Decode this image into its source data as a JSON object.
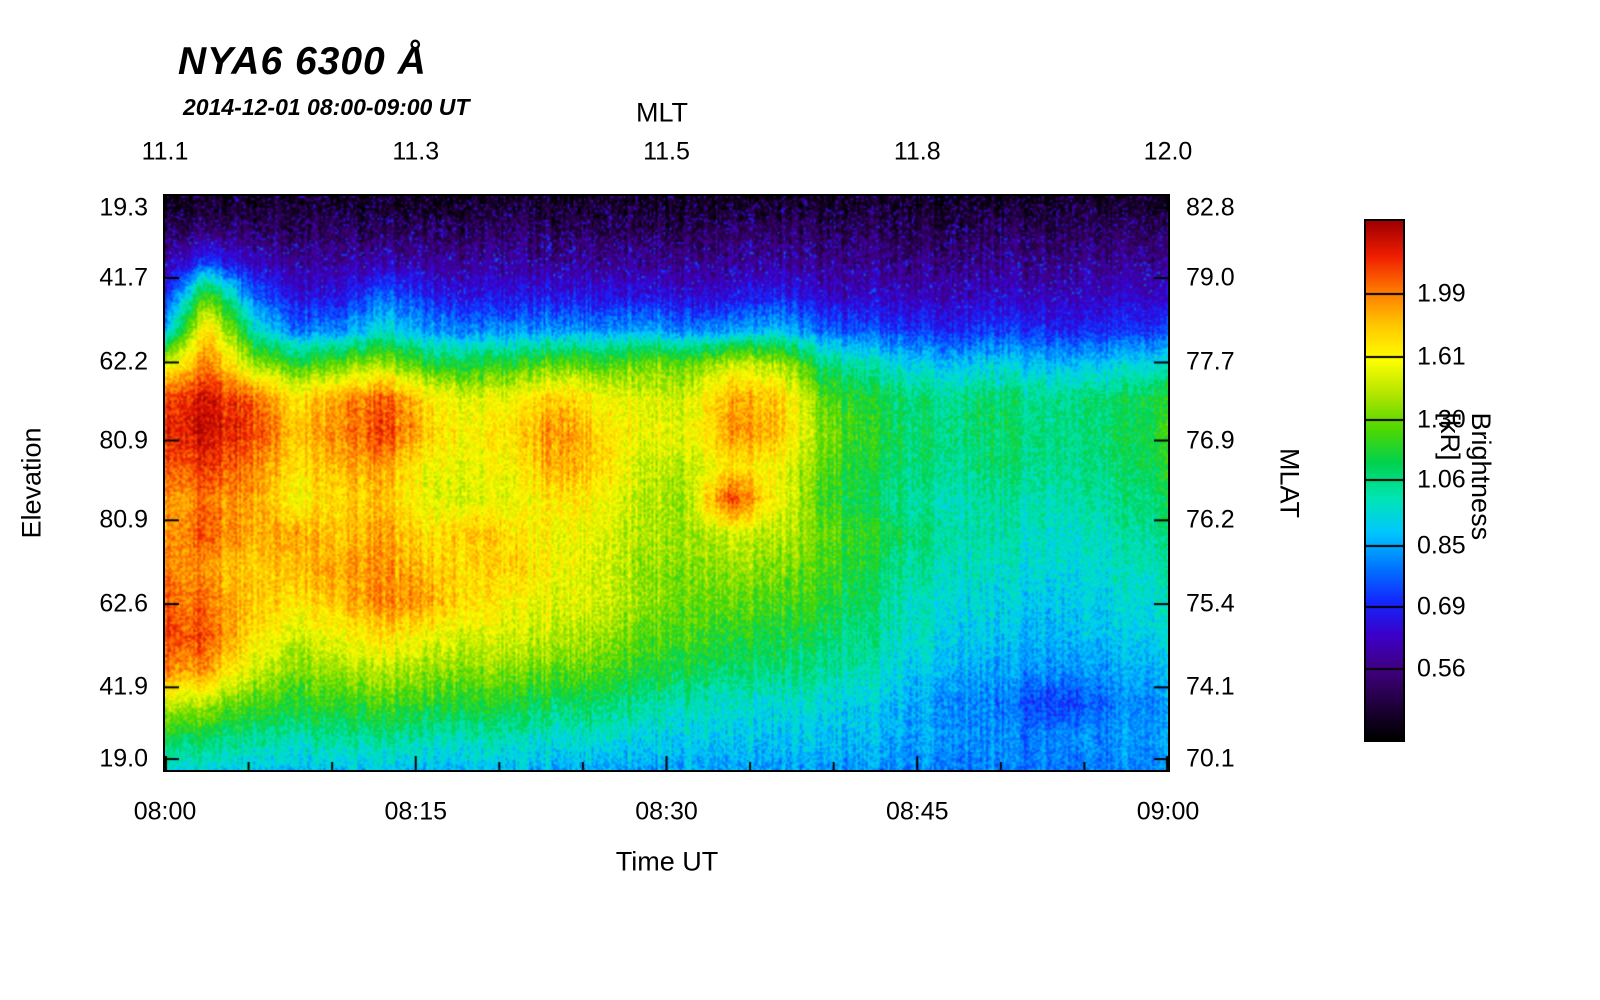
{
  "chart_data": {
    "type": "heatmap",
    "title": "NYA6 6300 Å",
    "subtitle": "2014-12-01 08:00-09:00 UT",
    "x_label": "Time UT",
    "x_ticks": [
      "08:00",
      "08:15",
      "08:30",
      "08:45",
      "09:00"
    ],
    "x_tick_positions": [
      0,
      0.25,
      0.5,
      0.75,
      1
    ],
    "x2_label": "MLT",
    "x2_ticks": [
      "11.1",
      "11.3",
      "11.5",
      "11.8",
      "12.0"
    ],
    "y_label": "Elevation",
    "y_ticks": [
      "19.3",
      "41.7",
      "62.2",
      "80.9",
      "80.9",
      "62.6",
      "41.9",
      "19.0"
    ],
    "y_tick_positions": [
      0.021,
      0.143,
      0.29,
      0.426,
      0.565,
      0.711,
      0.856,
      0.981
    ],
    "y2_label": "MLAT",
    "y2_ticks": [
      "82.8",
      "79.0",
      "77.7",
      "76.9",
      "76.2",
      "75.4",
      "74.1",
      "70.1"
    ],
    "colorbar_label": "Brightness [kR]",
    "colorbar_tick_labels": [
      "1.99",
      "1.61",
      "1.30",
      "1.06",
      "0.85",
      "0.69",
      "0.56"
    ],
    "colorbar_tick_values": [
      1.99,
      1.61,
      1.3,
      1.06,
      0.85,
      0.69,
      0.56
    ],
    "value_range_kR": [
      0.44,
      2.55
    ],
    "scale": "log",
    "palette": [
      "#000000",
      "#20003c",
      "#40007e",
      "#3c00c8",
      "#1428ff",
      "#0078ff",
      "#00c8ff",
      "#00e6b4",
      "#00d250",
      "#50d800",
      "#b4e600",
      "#ffff00",
      "#ffc800",
      "#ff7800",
      "#f01e00",
      "#a00000"
    ],
    "grid_kR": [
      [
        0.45,
        0.46,
        0.45,
        0.47,
        0.45,
        0.46,
        0.45,
        0.45,
        0.46,
        0.45,
        0.47,
        0.45,
        0.46,
        0.45,
        0.45,
        0.46,
        0.45,
        0.45,
        0.46,
        0.45,
        0.45,
        0.46,
        0.45,
        0.45
      ],
      [
        0.5,
        0.52,
        0.51,
        0.5,
        0.52,
        0.5,
        0.51,
        0.5,
        0.52,
        0.51,
        0.5,
        0.52,
        0.5,
        0.53,
        0.52,
        0.5,
        0.51,
        0.5,
        0.5,
        0.51,
        0.5,
        0.5,
        0.51,
        0.5
      ],
      [
        0.58,
        0.72,
        0.62,
        0.58,
        0.57,
        0.6,
        0.58,
        0.57,
        0.58,
        0.57,
        0.57,
        0.58,
        0.56,
        0.57,
        0.58,
        0.56,
        0.56,
        0.55,
        0.55,
        0.56,
        0.55,
        0.55,
        0.56,
        0.55
      ],
      [
        0.68,
        1.25,
        0.78,
        0.66,
        0.66,
        0.78,
        0.7,
        0.65,
        0.66,
        0.68,
        0.66,
        0.68,
        0.64,
        0.66,
        0.7,
        0.63,
        0.62,
        0.62,
        0.61,
        0.62,
        0.61,
        0.6,
        0.62,
        0.62
      ],
      [
        0.85,
        1.7,
        1.0,
        0.8,
        0.82,
        0.95,
        0.85,
        0.8,
        0.82,
        0.85,
        0.82,
        0.88,
        0.8,
        0.85,
        0.9,
        0.78,
        0.75,
        0.72,
        0.7,
        0.72,
        0.7,
        0.68,
        0.7,
        0.72
      ],
      [
        1.5,
        2.0,
        1.4,
        1.2,
        1.3,
        1.4,
        1.2,
        1.15,
        1.2,
        1.3,
        1.25,
        1.35,
        1.3,
        1.5,
        1.45,
        1.1,
        1.0,
        0.95,
        0.9,
        0.92,
        0.9,
        0.88,
        0.92,
        0.95
      ],
      [
        2.2,
        2.35,
        2.1,
        1.7,
        1.9,
        2.1,
        1.7,
        1.5,
        1.6,
        1.8,
        1.6,
        1.55,
        1.5,
        1.9,
        1.8,
        1.3,
        1.15,
        1.1,
        1.05,
        1.1,
        1.05,
        1.05,
        1.1,
        1.15
      ],
      [
        2.3,
        2.4,
        2.2,
        1.8,
        2.0,
        2.2,
        1.8,
        1.6,
        1.7,
        2.0,
        1.7,
        1.6,
        1.55,
        1.95,
        1.85,
        1.35,
        1.2,
        1.1,
        1.08,
        1.1,
        1.06,
        1.05,
        1.1,
        1.2
      ],
      [
        2.1,
        2.2,
        2.0,
        1.7,
        1.85,
        1.9,
        1.6,
        1.55,
        1.6,
        1.9,
        1.75,
        1.5,
        1.45,
        1.7,
        1.6,
        1.3,
        1.15,
        1.1,
        1.05,
        1.08,
        1.05,
        1.03,
        1.08,
        1.15
      ],
      [
        1.9,
        2.0,
        1.9,
        1.6,
        1.75,
        1.8,
        1.55,
        1.5,
        1.55,
        1.7,
        1.6,
        1.45,
        1.4,
        2.2,
        1.6,
        1.25,
        1.1,
        1.05,
        1.0,
        1.03,
        1.0,
        1.0,
        1.05,
        1.1
      ],
      [
        1.95,
        2.1,
        1.85,
        1.9,
        1.8,
        1.9,
        1.7,
        1.8,
        1.7,
        1.6,
        1.55,
        1.45,
        1.4,
        1.5,
        1.45,
        1.3,
        1.2,
        1.1,
        1.03,
        1.0,
        0.98,
        0.96,
        1.0,
        1.05
      ],
      [
        2.0,
        1.9,
        1.75,
        1.85,
        1.9,
        1.95,
        1.8,
        1.7,
        1.75,
        1.6,
        1.5,
        1.4,
        1.35,
        1.4,
        1.35,
        1.25,
        1.15,
        1.05,
        1.0,
        0.97,
        0.95,
        0.93,
        0.97,
        1.0
      ],
      [
        2.1,
        2.0,
        1.8,
        1.7,
        1.8,
        2.0,
        1.9,
        1.7,
        1.6,
        1.55,
        1.5,
        1.4,
        1.3,
        1.3,
        1.25,
        1.2,
        1.1,
        1.0,
        0.96,
        0.93,
        0.9,
        0.9,
        0.93,
        0.97
      ],
      [
        2.2,
        2.1,
        1.7,
        1.5,
        1.6,
        1.7,
        1.6,
        1.5,
        1.5,
        1.45,
        1.4,
        1.3,
        1.25,
        1.2,
        1.15,
        1.1,
        1.05,
        0.98,
        0.93,
        0.9,
        0.87,
        0.87,
        0.9,
        0.93
      ],
      [
        2.0,
        1.9,
        1.5,
        1.35,
        1.4,
        1.45,
        1.4,
        1.35,
        1.35,
        1.3,
        1.28,
        1.2,
        1.15,
        1.1,
        1.08,
        1.05,
        1.0,
        0.93,
        0.88,
        0.85,
        0.83,
        0.82,
        0.85,
        0.88
      ],
      [
        1.5,
        1.4,
        1.25,
        1.2,
        1.22,
        1.25,
        1.2,
        1.18,
        1.15,
        1.12,
        1.1,
        1.05,
        1.0,
        0.98,
        0.96,
        0.95,
        0.92,
        0.87,
        0.83,
        0.8,
        0.72,
        0.73,
        0.8,
        0.82
      ],
      [
        1.15,
        1.1,
        1.05,
        1.02,
        1.05,
        1.05,
        1.02,
        1.0,
        1.0,
        0.98,
        0.97,
        0.95,
        0.93,
        0.92,
        0.9,
        0.9,
        0.88,
        0.86,
        0.84,
        0.82,
        0.8,
        0.8,
        0.82,
        0.84
      ],
      [
        0.95,
        0.93,
        0.9,
        0.9,
        0.9,
        0.9,
        0.89,
        0.88,
        0.88,
        0.87,
        0.86,
        0.86,
        0.85,
        0.85,
        0.84,
        0.84,
        0.83,
        0.82,
        0.81,
        0.8,
        0.79,
        0.79,
        0.8,
        0.81
      ]
    ]
  }
}
